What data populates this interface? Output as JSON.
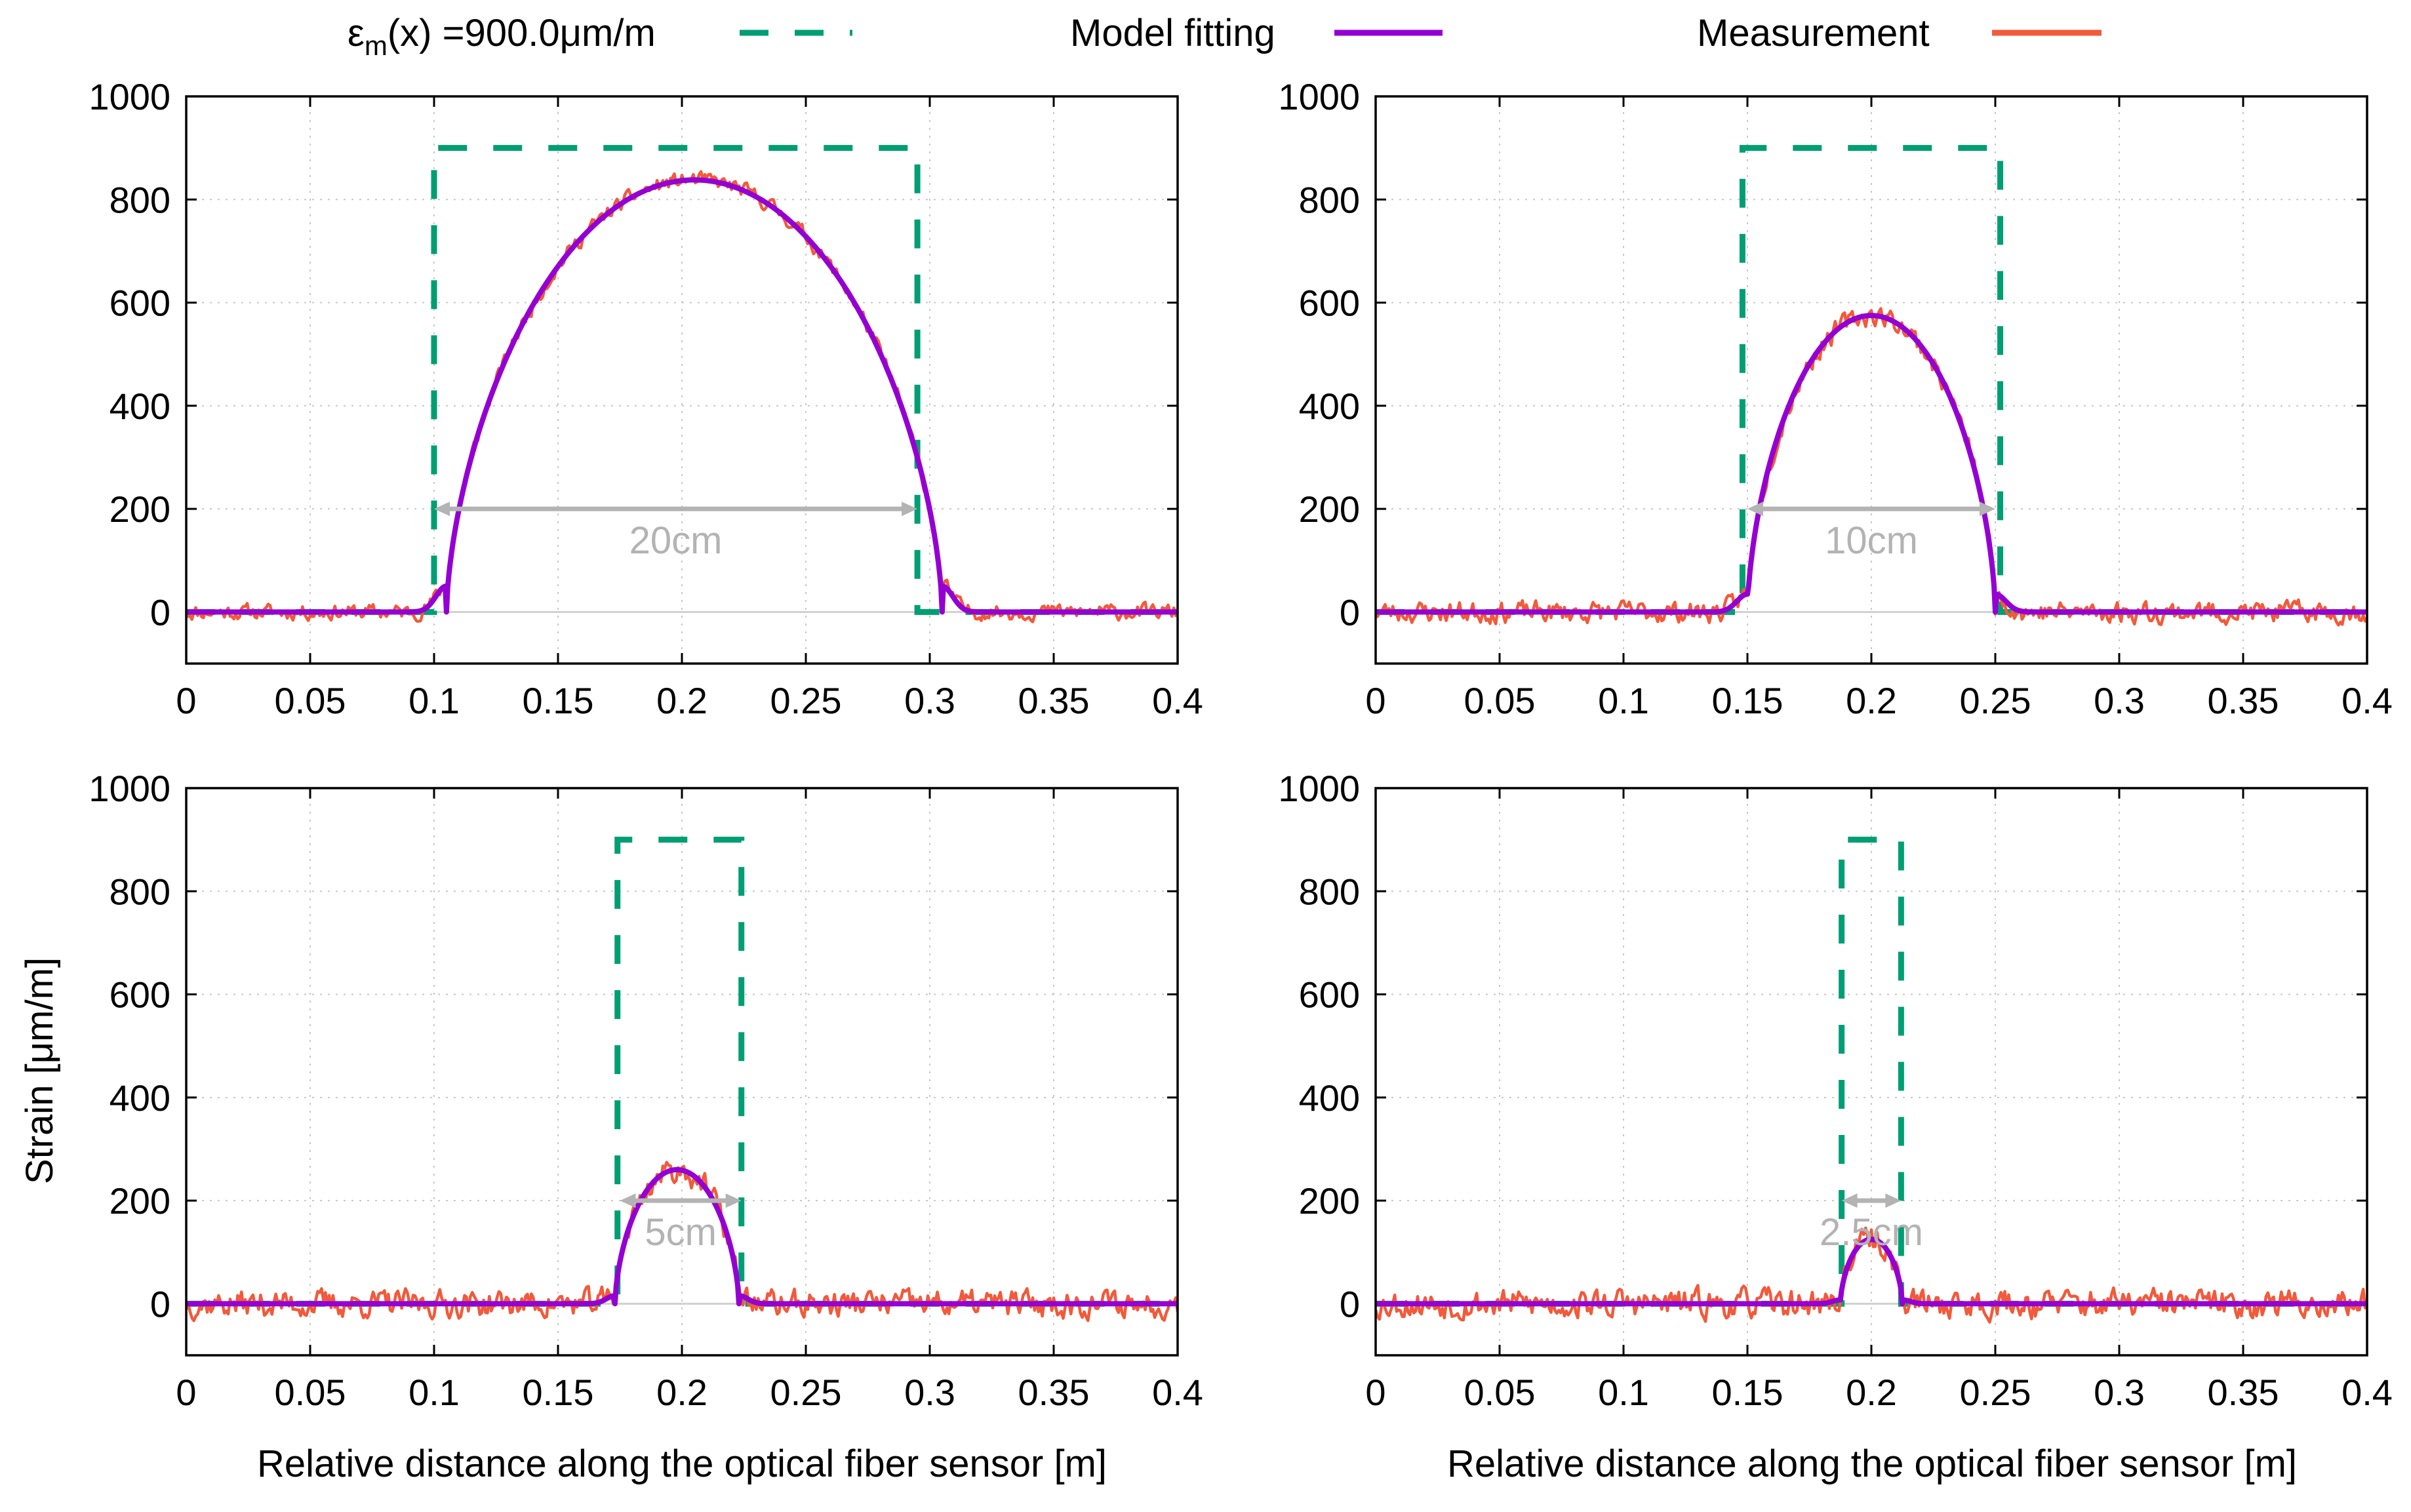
{
  "legend": {
    "items": [
      {
        "label_main": "ε",
        "label_sub": "m",
        "label_rest": "(x) =900.0μm/m",
        "style": "dashed",
        "color": "#009e73"
      },
      {
        "label": "Model fitting",
        "style": "solid",
        "color": "#9400d3"
      },
      {
        "label": "Measurement",
        "style": "solid",
        "color": "#f15a3a"
      }
    ]
  },
  "y_axis_label": "Strain [μm/m]",
  "x_axis_label": "Relative distance along the optical fiber sensor [m]",
  "colors": {
    "imposed": "#009e73",
    "model": "#9400d3",
    "measurement": "#f15a3a",
    "annotation": "#b3b3b3",
    "grid": "#c8c8c8",
    "zero_line": "#d0d0d0"
  },
  "chart_data": [
    {
      "type": "line",
      "panel": "top-left",
      "xlim": [
        0,
        0.4
      ],
      "ylim": [
        -100,
        1000
      ],
      "xticks": [
        "0",
        "0.05",
        "0.1",
        "0.15",
        "0.2",
        "0.25",
        "0.3",
        "0.35",
        "0.4"
      ],
      "yticks": [
        "0",
        "200",
        "400",
        "600",
        "800",
        "1000"
      ],
      "grid": true,
      "imposed_strain": {
        "value": 900,
        "start": 0.1,
        "end": 0.295
      },
      "model_peak": {
        "center": 0.205,
        "peak": 838,
        "half_width": 0.1,
        "sigma": 0.006
      },
      "measurement_noise": 8,
      "measurement_seed": 11,
      "annotation": {
        "label": "20cm",
        "x_start": 0.1,
        "x_end": 0.295,
        "y": 200
      },
      "series": [
        {
          "name": "ε_m(x) =900.0μm/m",
          "style": "dashed"
        },
        {
          "name": "Model fitting",
          "style": "solid"
        },
        {
          "name": "Measurement",
          "style": "solid"
        }
      ]
    },
    {
      "type": "line",
      "panel": "top-right",
      "xlim": [
        0,
        0.4
      ],
      "ylim": [
        -100,
        1000
      ],
      "xticks": [
        "0",
        "0.05",
        "0.1",
        "0.15",
        "0.2",
        "0.25",
        "0.3",
        "0.35",
        "0.4"
      ],
      "yticks": [
        "0",
        "200",
        "400",
        "600",
        "800",
        "1000"
      ],
      "grid": true,
      "imposed_strain": {
        "value": 900,
        "start": 0.148,
        "end": 0.252
      },
      "model_peak": {
        "center": 0.2,
        "peak": 575,
        "half_width": 0.05,
        "sigma": 0.006
      },
      "measurement_noise": 11,
      "measurement_seed": 23,
      "annotation": {
        "label": "10cm",
        "x_start": 0.15,
        "x_end": 0.25,
        "y": 200
      },
      "series": [
        {
          "name": "ε_m(x) =900.0μm/m",
          "style": "dashed"
        },
        {
          "name": "Model fitting",
          "style": "solid"
        },
        {
          "name": "Measurement",
          "style": "solid"
        }
      ]
    },
    {
      "type": "line",
      "panel": "bottom-left",
      "xlim": [
        0,
        0.4
      ],
      "ylim": [
        -100,
        1000
      ],
      "xticks": [
        "0",
        "0.05",
        "0.1",
        "0.15",
        "0.2",
        "0.25",
        "0.3",
        "0.35",
        "0.4"
      ],
      "yticks": [
        "0",
        "200",
        "400",
        "600",
        "800",
        "1000"
      ],
      "grid": true,
      "imposed_strain": {
        "value": 900,
        "start": 0.174,
        "end": 0.224
      },
      "model_peak": {
        "center": 0.198,
        "peak": 260,
        "half_width": 0.025,
        "sigma": 0.005
      },
      "measurement_noise": 14,
      "measurement_seed": 37,
      "annotation": {
        "label": "5cm",
        "x_start": 0.175,
        "x_end": 0.224,
        "y": 200
      },
      "series": [
        {
          "name": "ε_m(x) =900.0μm/m",
          "style": "dashed"
        },
        {
          "name": "Model fitting",
          "style": "solid"
        },
        {
          "name": "Measurement",
          "style": "solid"
        }
      ]
    },
    {
      "type": "line",
      "panel": "bottom-right",
      "xlim": [
        0,
        0.4
      ],
      "ylim": [
        -100,
        1000
      ],
      "xticks": [
        "0",
        "0.05",
        "0.1",
        "0.15",
        "0.2",
        "0.25",
        "0.3",
        "0.35",
        "0.4"
      ],
      "yticks": [
        "0",
        "200",
        "400",
        "600",
        "800",
        "1000"
      ],
      "grid": true,
      "imposed_strain": {
        "value": 900,
        "start": 0.188,
        "end": 0.212
      },
      "model_peak": {
        "center": 0.2,
        "peak": 125,
        "half_width": 0.0125,
        "sigma": 0.0045
      },
      "measurement_noise": 15,
      "measurement_seed": 53,
      "annotation": {
        "label": "2.5cm",
        "x_start": 0.188,
        "x_end": 0.212,
        "y": 200
      },
      "series": [
        {
          "name": "ε_m(x) =900.0μm/m",
          "style": "dashed"
        },
        {
          "name": "Model fitting",
          "style": "solid"
        },
        {
          "name": "Measurement",
          "style": "solid"
        }
      ]
    }
  ]
}
